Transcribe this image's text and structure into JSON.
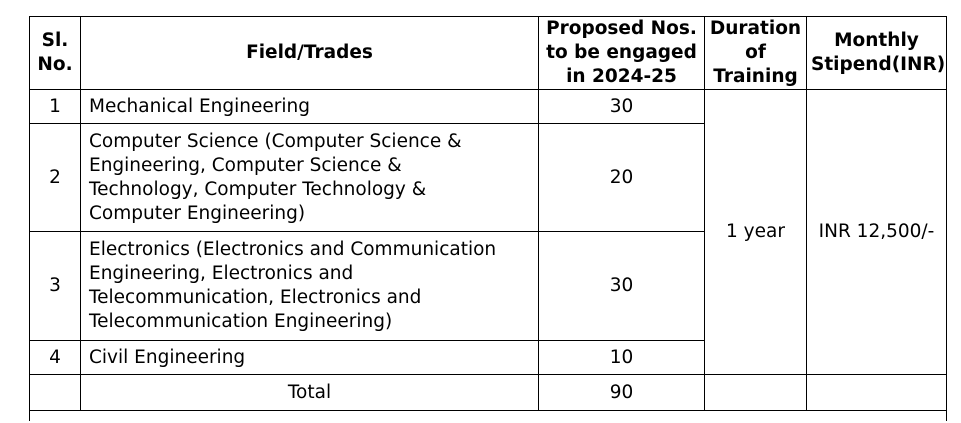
{
  "headers": {
    "sl_no": [
      "Sl.",
      "No."
    ],
    "field": "Field/Trades",
    "proposed": [
      "Proposed Nos.",
      "to be engaged",
      "in 2024-25"
    ],
    "duration": [
      "Duration",
      "of",
      "Training"
    ],
    "stipend": [
      "Monthly",
      "Stipend(INR)"
    ]
  },
  "rows": [
    {
      "sl": "1",
      "field_lines": [
        "Mechanical Engineering"
      ],
      "proposed": "30"
    },
    {
      "sl": "2",
      "field_lines": [
        "Computer Science (Computer Science &",
        "Engineering, Computer Science &",
        "Technology, Computer Technology &",
        "Computer Engineering)"
      ],
      "proposed": "20"
    },
    {
      "sl": "3",
      "field_lines": [
        "Electronics (Electronics and Communication",
        "Engineering, Electronics and",
        "Telecommunication, Electronics and",
        "Telecommunication Engineering)"
      ],
      "proposed": "30"
    },
    {
      "sl": "4",
      "field_lines": [
        "Civil Engineering"
      ],
      "proposed": "10"
    }
  ],
  "duration_value": "1 year",
  "stipend_value": "INR 12,500/-",
  "total": {
    "label": "Total",
    "value": "90"
  }
}
